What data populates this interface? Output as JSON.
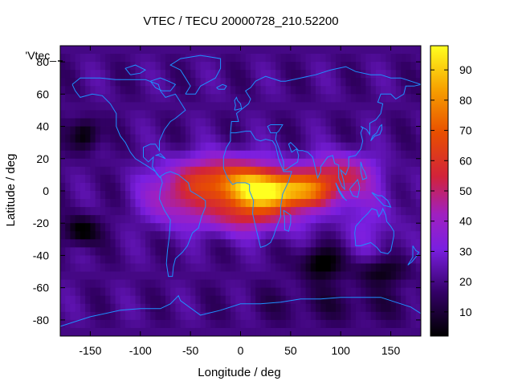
{
  "chart_data": {
    "type": "heatmap",
    "title": "VTEC / TECU 20000728_210.52200",
    "xlabel": "Longitude / deg",
    "ylabel": "Latitude / deg",
    "xlim": [
      -180,
      180
    ],
    "ylim": [
      -90,
      90
    ],
    "xticks": [
      -150,
      -100,
      -50,
      0,
      50,
      100,
      150
    ],
    "yticks": [
      -80,
      -60,
      -40,
      -20,
      0,
      20,
      40,
      60,
      80
    ],
    "colorbar": {
      "range": [
        2,
        98
      ],
      "ticks": [
        10,
        20,
        30,
        40,
        50,
        60,
        70,
        80,
        90
      ],
      "palette": "black-purple-red-orange-yellow"
    },
    "legend_entry": "'Vtec_",
    "overlay": "coastlines",
    "cell_size_deg": 5,
    "features": {
      "background_vtec": 20,
      "equatorial_anomaly": {
        "center_lon": 35,
        "center_lat": 0,
        "peak": 94
      },
      "north_crest": {
        "center_lon": 0,
        "center_lat": 15,
        "peak": 68
      },
      "south_crest": {
        "center_lon": 10,
        "center_lat": -15,
        "peak": 62
      },
      "lows": [
        {
          "lon": -155,
          "lat": 35,
          "vtec": 3
        },
        {
          "lon": -160,
          "lat": -25,
          "vtec": 3
        },
        {
          "lon": 80,
          "lat": -45,
          "vtec": 2
        },
        {
          "lon": 140,
          "lat": -50,
          "vtec": 8
        }
      ]
    }
  }
}
